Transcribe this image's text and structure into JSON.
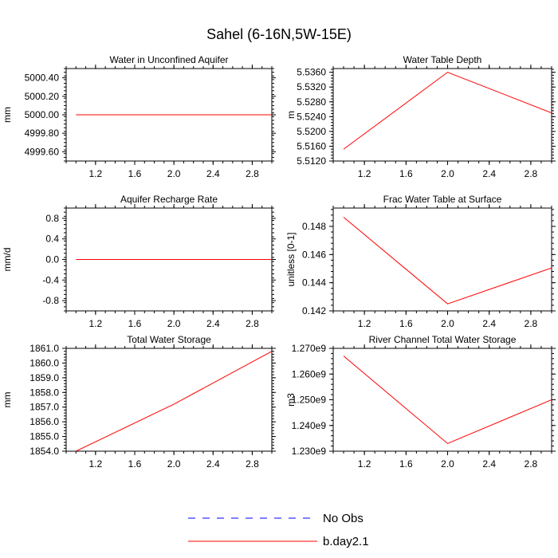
{
  "figure": {
    "title": "Sahel (6-16N,5W-15E)"
  },
  "colors": {
    "model": "#ff0000",
    "obs": "#0000ff",
    "axis": "#000000"
  },
  "legend": {
    "entries": [
      {
        "label": "No Obs",
        "color": "#0000ff",
        "style": "dashed"
      },
      {
        "label": "b.day2.1",
        "color": "#ff0000",
        "style": "solid"
      }
    ]
  },
  "chart_data": [
    {
      "type": "line",
      "title": "Water in Unconfined Aquifer",
      "xlabel": "",
      "ylabel": "mm",
      "x": [
        1,
        2,
        3
      ],
      "series": [
        {
          "name": "b.day2.1",
          "values": [
            5000.0,
            5000.0,
            5000.0
          ]
        }
      ],
      "xlim": [
        0.9,
        3.0
      ],
      "ylim": [
        4999.5,
        5000.5
      ],
      "xticks": [
        1.2,
        1.6,
        2.0,
        2.4,
        2.8
      ],
      "xtick_labels": [
        "1.2",
        "1.6",
        "2.0",
        "2.4",
        "2.8"
      ],
      "yticks": [
        4999.6,
        4999.8,
        5000.0,
        5000.2,
        5000.4
      ],
      "ytick_labels": [
        "4999.60",
        "4999.80",
        "5000.00",
        "5000.20",
        "5000.40"
      ]
    },
    {
      "type": "line",
      "title": "Water Table Depth",
      "xlabel": "",
      "ylabel": "m",
      "x": [
        1,
        2,
        3
      ],
      "series": [
        {
          "name": "b.day2.1",
          "values": [
            5.5152,
            5.536,
            5.525
          ]
        }
      ],
      "xlim": [
        0.9,
        3.0
      ],
      "ylim": [
        5.512,
        5.537
      ],
      "xticks": [
        1.2,
        1.6,
        2.0,
        2.4,
        2.8
      ],
      "xtick_labels": [
        "1.2",
        "1.6",
        "2.0",
        "2.4",
        "2.8"
      ],
      "yticks": [
        5.512,
        5.516,
        5.52,
        5.524,
        5.528,
        5.532,
        5.536
      ],
      "ytick_labels": [
        "5.5120",
        "5.5160",
        "5.5200",
        "5.5240",
        "5.5280",
        "5.5320",
        "5.5360"
      ]
    },
    {
      "type": "line",
      "title": "Aquifer Recharge Rate",
      "xlabel": "",
      "ylabel": "mm/d",
      "x": [
        1,
        2,
        3
      ],
      "series": [
        {
          "name": "b.day2.1",
          "values": [
            0.0,
            0.0,
            0.0
          ]
        }
      ],
      "xlim": [
        0.9,
        3.0
      ],
      "ylim": [
        -1.0,
        1.0
      ],
      "xticks": [
        1.2,
        1.6,
        2.0,
        2.4,
        2.8
      ],
      "xtick_labels": [
        "1.2",
        "1.6",
        "2.0",
        "2.4",
        "2.8"
      ],
      "yticks": [
        -0.8,
        -0.4,
        0.0,
        0.4,
        0.8
      ],
      "ytick_labels": [
        "-0.8",
        "-0.4",
        "0.0",
        "0.4",
        "0.8"
      ]
    },
    {
      "type": "line",
      "title": "Frac Water Table at Surface",
      "xlabel": "",
      "ylabel": "unitless [0-1]",
      "x": [
        1,
        2,
        3
      ],
      "series": [
        {
          "name": "b.day2.1",
          "values": [
            0.14865,
            0.1425,
            0.14505
          ]
        }
      ],
      "xlim": [
        0.9,
        3.0
      ],
      "ylim": [
        0.142,
        0.1493
      ],
      "xticks": [
        1.2,
        1.6,
        2.0,
        2.4,
        2.8
      ],
      "xtick_labels": [
        "1.2",
        "1.6",
        "2.0",
        "2.4",
        "2.8"
      ],
      "yticks": [
        0.142,
        0.144,
        0.146,
        0.148
      ],
      "ytick_labels": [
        "0.142",
        "0.144",
        "0.146",
        "0.148"
      ]
    },
    {
      "type": "line",
      "title": "Total Water Storage",
      "xlabel": "",
      "ylabel": "mm",
      "x": [
        1,
        2,
        3
      ],
      "series": [
        {
          "name": "b.day2.1",
          "values": [
            1854.0,
            1857.2,
            1860.8
          ]
        }
      ],
      "xlim": [
        0.9,
        3.0
      ],
      "ylim": [
        1854.0,
        1861.0
      ],
      "xticks": [
        1.2,
        1.6,
        2.0,
        2.4,
        2.8
      ],
      "xtick_labels": [
        "1.2",
        "1.6",
        "2.0",
        "2.4",
        "2.8"
      ],
      "yticks": [
        1854,
        1855,
        1856,
        1857,
        1858,
        1859,
        1860,
        1861
      ],
      "ytick_labels": [
        "1854.0",
        "1855.0",
        "1856.0",
        "1857.0",
        "1858.0",
        "1859.0",
        "1860.0",
        "1861.0"
      ]
    },
    {
      "type": "line",
      "title": "River Channel Total Water Storage",
      "xlabel": "",
      "ylabel": "m3",
      "x": [
        1,
        2,
        3
      ],
      "series": [
        {
          "name": "b.day2.1",
          "values": [
            1267000000,
            1233000000,
            1250000000
          ]
        }
      ],
      "xlim": [
        0.9,
        3.0
      ],
      "ylim": [
        1230000000,
        1270000000
      ],
      "xticks": [
        1.2,
        1.6,
        2.0,
        2.4,
        2.8
      ],
      "xtick_labels": [
        "1.2",
        "1.6",
        "2.0",
        "2.4",
        "2.8"
      ],
      "yticks": [
        1230000000,
        1240000000,
        1250000000,
        1260000000,
        1270000000
      ],
      "ytick_labels": [
        "1.230e9",
        "1.240e9",
        "1.250e9",
        "1.260e9",
        "1.270e9"
      ]
    }
  ]
}
